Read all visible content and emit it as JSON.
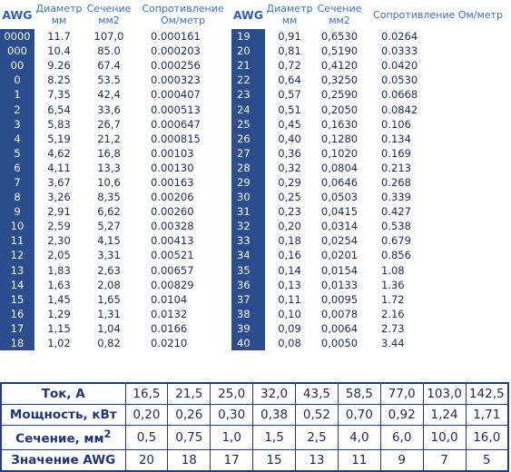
{
  "headers": {
    "awg": "AWG",
    "diameter": "Диаметр мм",
    "section": "Сечение мм2",
    "resistance": "Сопротивление Ом/метр"
  },
  "rows_left": [
    {
      "awg": "0000",
      "d": "11.7",
      "s": "107,0",
      "r": "0.000161"
    },
    {
      "awg": "000",
      "d": "10.4",
      "s": "85.0",
      "r": "0.000203"
    },
    {
      "awg": "00",
      "d": "9.26",
      "s": "67.4",
      "r": "0.000256"
    },
    {
      "awg": "0",
      "d": "8.25",
      "s": "53.5",
      "r": "0.000323"
    },
    {
      "awg": "1",
      "d": "7,35",
      "s": "42,4",
      "r": "0.000407"
    },
    {
      "awg": "2",
      "d": "6,54",
      "s": "33,6",
      "r": "0.000513"
    },
    {
      "awg": "3",
      "d": "5,83",
      "s": "26,7",
      "r": "0.000647"
    },
    {
      "awg": "4",
      "d": "5,19",
      "s": "21,2",
      "r": "0.000815"
    },
    {
      "awg": "5",
      "d": "4,62",
      "s": "16,8",
      "r": "0.00103"
    },
    {
      "awg": "6",
      "d": "4,11",
      "s": "13,3",
      "r": "0.00130"
    },
    {
      "awg": "7",
      "d": "3,67",
      "s": "10,6",
      "r": "0.00163"
    },
    {
      "awg": "8",
      "d": "3,26",
      "s": "8,35",
      "r": "0.00206"
    },
    {
      "awg": "9",
      "d": "2,91",
      "s": "6,62",
      "r": "0.00260"
    },
    {
      "awg": "10",
      "d": "2,59",
      "s": "5,27",
      "r": "0.00328"
    },
    {
      "awg": "11",
      "d": "2,30",
      "s": "4,15",
      "r": "0.00413"
    },
    {
      "awg": "12",
      "d": "2,05",
      "s": "3,31",
      "r": "0.00521"
    },
    {
      "awg": "13",
      "d": "1,83",
      "s": "2,63",
      "r": "0.00657"
    },
    {
      "awg": "14",
      "d": "1,63",
      "s": "2,08",
      "r": "0.00829"
    },
    {
      "awg": "15",
      "d": "1,45",
      "s": "1,65",
      "r": "0.0104"
    },
    {
      "awg": "16",
      "d": "1,29",
      "s": "1,31",
      "r": "0.0132"
    },
    {
      "awg": "17",
      "d": "1,15",
      "s": "1,04",
      "r": "0.0166"
    },
    {
      "awg": "18",
      "d": "1,02",
      "s": "0,82",
      "r": "0.0210"
    }
  ],
  "rows_right": [
    {
      "awg": "19",
      "d": "0,91",
      "s": "0,6530",
      "r": "0.0264"
    },
    {
      "awg": "20",
      "d": "0,81",
      "s": "0,5190",
      "r": "0.0333"
    },
    {
      "awg": "21",
      "d": "0,72",
      "s": "0,4120",
      "r": "0.0420"
    },
    {
      "awg": "22",
      "d": "0,64",
      "s": "0,3250",
      "r": "0.0530"
    },
    {
      "awg": "23",
      "d": "0,57",
      "s": "0,2590",
      "r": "0.0668"
    },
    {
      "awg": "24",
      "d": "0,51",
      "s": "0,2050",
      "r": "0.0842"
    },
    {
      "awg": "25",
      "d": "0,45",
      "s": "0,1630",
      "r": "0.106"
    },
    {
      "awg": "26",
      "d": "0,40",
      "s": "0,1280",
      "r": "0.134"
    },
    {
      "awg": "27",
      "d": "0,36",
      "s": "0,1020",
      "r": "0.169"
    },
    {
      "awg": "28",
      "d": "0,32",
      "s": "0,0804",
      "r": "0.213"
    },
    {
      "awg": "29",
      "d": "0,29",
      "s": "0,0646",
      "r": "0.268"
    },
    {
      "awg": "30",
      "d": "0,25",
      "s": "0,0503",
      "r": "0.339"
    },
    {
      "awg": "31",
      "d": "0,23",
      "s": "0,0415",
      "r": "0.427"
    },
    {
      "awg": "32",
      "d": "0,20",
      "s": "0,0314",
      "r": "0.538"
    },
    {
      "awg": "33",
      "d": "0,18",
      "s": "0,0254",
      "r": "0.679"
    },
    {
      "awg": "34",
      "d": "0,16",
      "s": "0,0201",
      "r": "0.856"
    },
    {
      "awg": "35",
      "d": "0,14",
      "s": "0,0154",
      "r": "1.08"
    },
    {
      "awg": "36",
      "d": "0,13",
      "s": "0,0133",
      "r": "1.36"
    },
    {
      "awg": "37",
      "d": "0,11",
      "s": "0,0095",
      "r": "1.72"
    },
    {
      "awg": "38",
      "d": "0,10",
      "s": "0,0078",
      "r": "2.16"
    },
    {
      "awg": "39",
      "d": "0,09",
      "s": "0,0064",
      "r": "2.73"
    },
    {
      "awg": "40",
      "d": "0,08",
      "s": "0,0050",
      "r": "3.44"
    }
  ],
  "bottom": {
    "current_label": "Ток, А",
    "current": [
      "16,5",
      "21,5",
      "25,0",
      "32,0",
      "43,5",
      "58,5",
      "77,0",
      "103,0",
      "142,5"
    ],
    "power_label": "Мощность, кВт",
    "power": [
      "0,20",
      "0,26",
      "0,30",
      "0,38",
      "0,52",
      "0,70",
      "0,92",
      "1,24",
      "1,71"
    ],
    "section_label": "Сечение, мм",
    "section_sup": "2",
    "section": [
      "0,5",
      "0,75",
      "1,0",
      "1,5",
      "2,5",
      "4,0",
      "6,0",
      "10,0",
      "16,0"
    ],
    "awg_label": "Значение AWG",
    "awg": [
      "20",
      "18",
      "17",
      "15",
      "13",
      "11",
      "9",
      "7",
      "5"
    ]
  },
  "colors": {
    "awg_cell_bg": "#2a4d8e",
    "header_text": "#3a6fc9",
    "border": "#1f3c92"
  }
}
